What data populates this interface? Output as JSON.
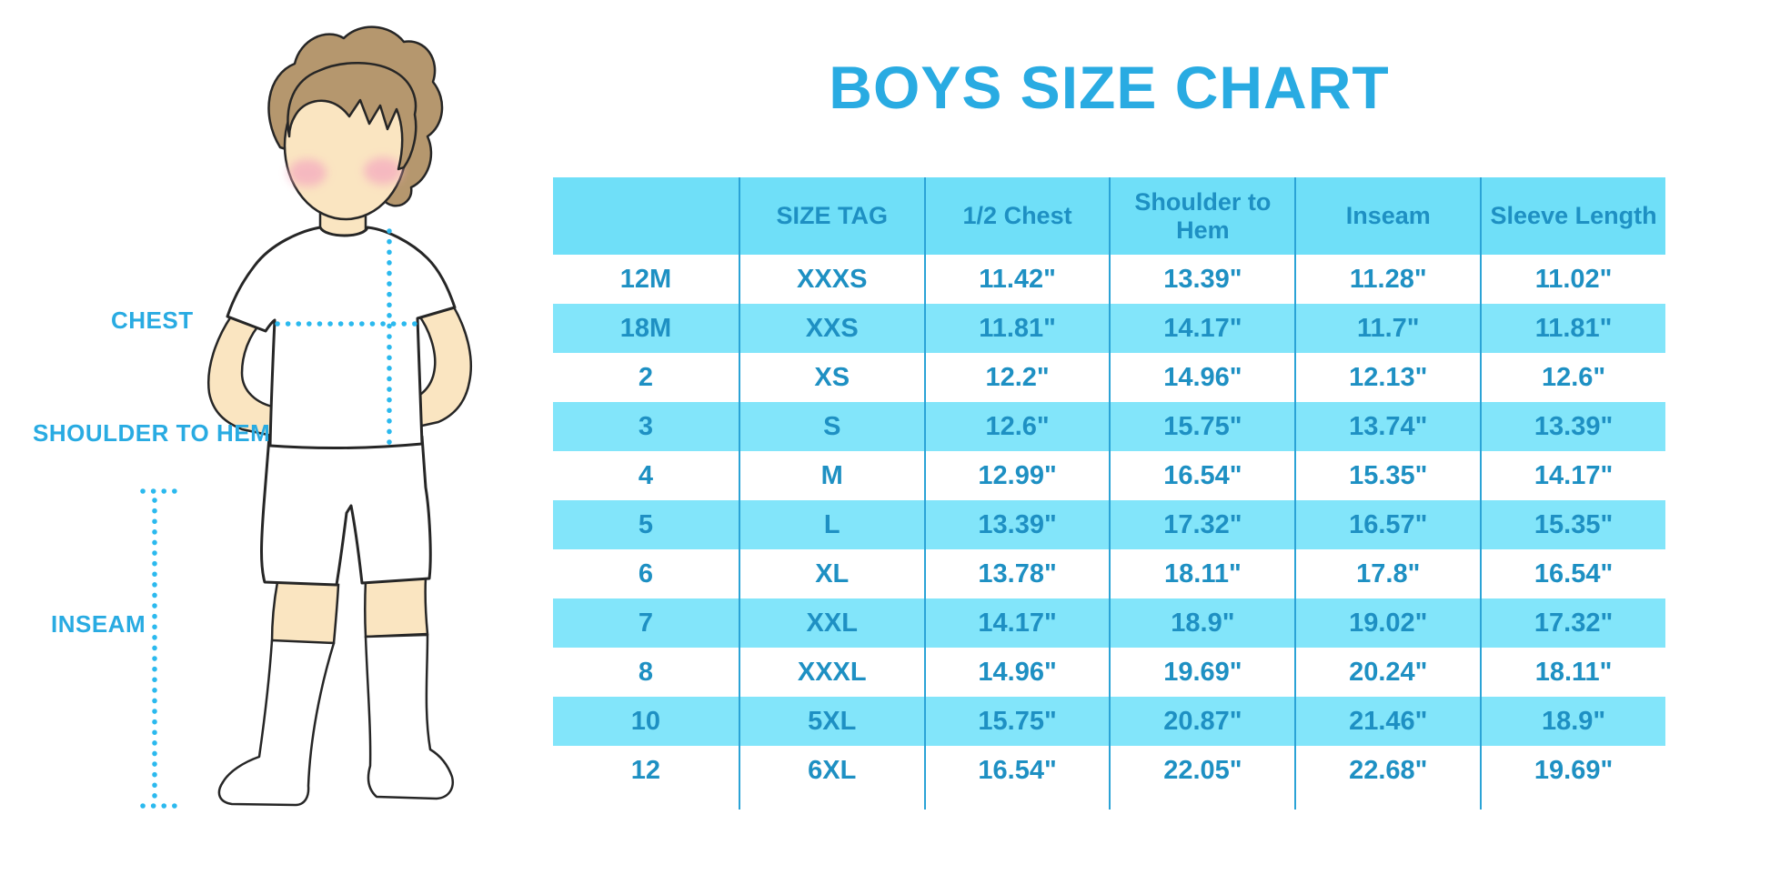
{
  "title": "BOYS SIZE CHART",
  "illustration": {
    "chest_label": "CHEST",
    "shoulder_to_hem_label": "SHOULDER TO HEM",
    "inseam_label": "INSEAM"
  },
  "table": {
    "headers": [
      "",
      "SIZE TAG",
      "1/2 Chest",
      "Shoulder to Hem",
      "Inseam",
      "Sleeve Length"
    ],
    "rows": [
      [
        "12M",
        "XXXS",
        "11.42\"",
        "13.39\"",
        "11.28\"",
        "11.02\""
      ],
      [
        "18M",
        "XXS",
        "11.81\"",
        "14.17\"",
        "11.7\"",
        "11.81\""
      ],
      [
        "2",
        "XS",
        "12.2\"",
        "14.96\"",
        "12.13\"",
        "12.6\""
      ],
      [
        "3",
        "S",
        "12.6\"",
        "15.75\"",
        "13.74\"",
        "13.39\""
      ],
      [
        "4",
        "M",
        "12.99\"",
        "16.54\"",
        "15.35\"",
        "14.17\""
      ],
      [
        "5",
        "L",
        "13.39\"",
        "17.32\"",
        "16.57\"",
        "15.35\""
      ],
      [
        "6",
        "XL",
        "13.78\"",
        "18.11\"",
        "17.8\"",
        "16.54\""
      ],
      [
        "7",
        "XXL",
        "14.17\"",
        "18.9\"",
        "19.02\"",
        "17.32\""
      ],
      [
        "8",
        "XXXL",
        "14.96\"",
        "19.69\"",
        "20.24\"",
        "18.11\""
      ],
      [
        "10",
        "5XL",
        "15.75\"",
        "20.87\"",
        "21.46\"",
        "18.9\""
      ],
      [
        "12",
        "6XL",
        "16.54\"",
        "22.05\"",
        "22.68\"",
        "19.69\""
      ]
    ]
  },
  "colors": {
    "accent": "#29ABE2",
    "table-text": "#1E90C3",
    "band": "#6FDFF8",
    "band-light": "#82E5FA",
    "grid-line": "#2BA3D6",
    "dot": "#2BB9EE",
    "skin": "#FAE5C1",
    "hair": "#B5976E",
    "cheek": "#F5AFC0",
    "outline": "#262626"
  },
  "chart_data": {
    "type": "table",
    "title": "BOYS SIZE CHART",
    "columns": [
      "",
      "SIZE TAG",
      "1/2 Chest",
      "Shoulder to Hem",
      "Inseam",
      "Sleeve Length"
    ],
    "rows": [
      [
        "12M",
        "XXXS",
        "11.42\"",
        "13.39\"",
        "11.28\"",
        "11.02\""
      ],
      [
        "18M",
        "XXS",
        "11.81\"",
        "14.17\"",
        "11.7\"",
        "11.81\""
      ],
      [
        "2",
        "XS",
        "12.2\"",
        "14.96\"",
        "12.13\"",
        "12.6\""
      ],
      [
        "3",
        "S",
        "12.6\"",
        "15.75\"",
        "13.74\"",
        "13.39\""
      ],
      [
        "4",
        "M",
        "12.99\"",
        "16.54\"",
        "15.35\"",
        "14.17\""
      ],
      [
        "5",
        "L",
        "13.39\"",
        "17.32\"",
        "16.57\"",
        "15.35\""
      ],
      [
        "6",
        "XL",
        "13.78\"",
        "18.11\"",
        "17.8\"",
        "16.54\""
      ],
      [
        "7",
        "XXL",
        "14.17\"",
        "18.9\"",
        "19.02\"",
        "17.32\""
      ],
      [
        "8",
        "XXXL",
        "14.96\"",
        "19.69\"",
        "20.24\"",
        "18.11\""
      ],
      [
        "10",
        "5XL",
        "15.75\"",
        "20.87\"",
        "21.46\"",
        "18.9\""
      ],
      [
        "12",
        "6XL",
        "16.54\"",
        "22.05\"",
        "22.68\"",
        "19.69\""
      ]
    ],
    "legend": "none",
    "grid": "column separators + alternating cyan row bands"
  }
}
